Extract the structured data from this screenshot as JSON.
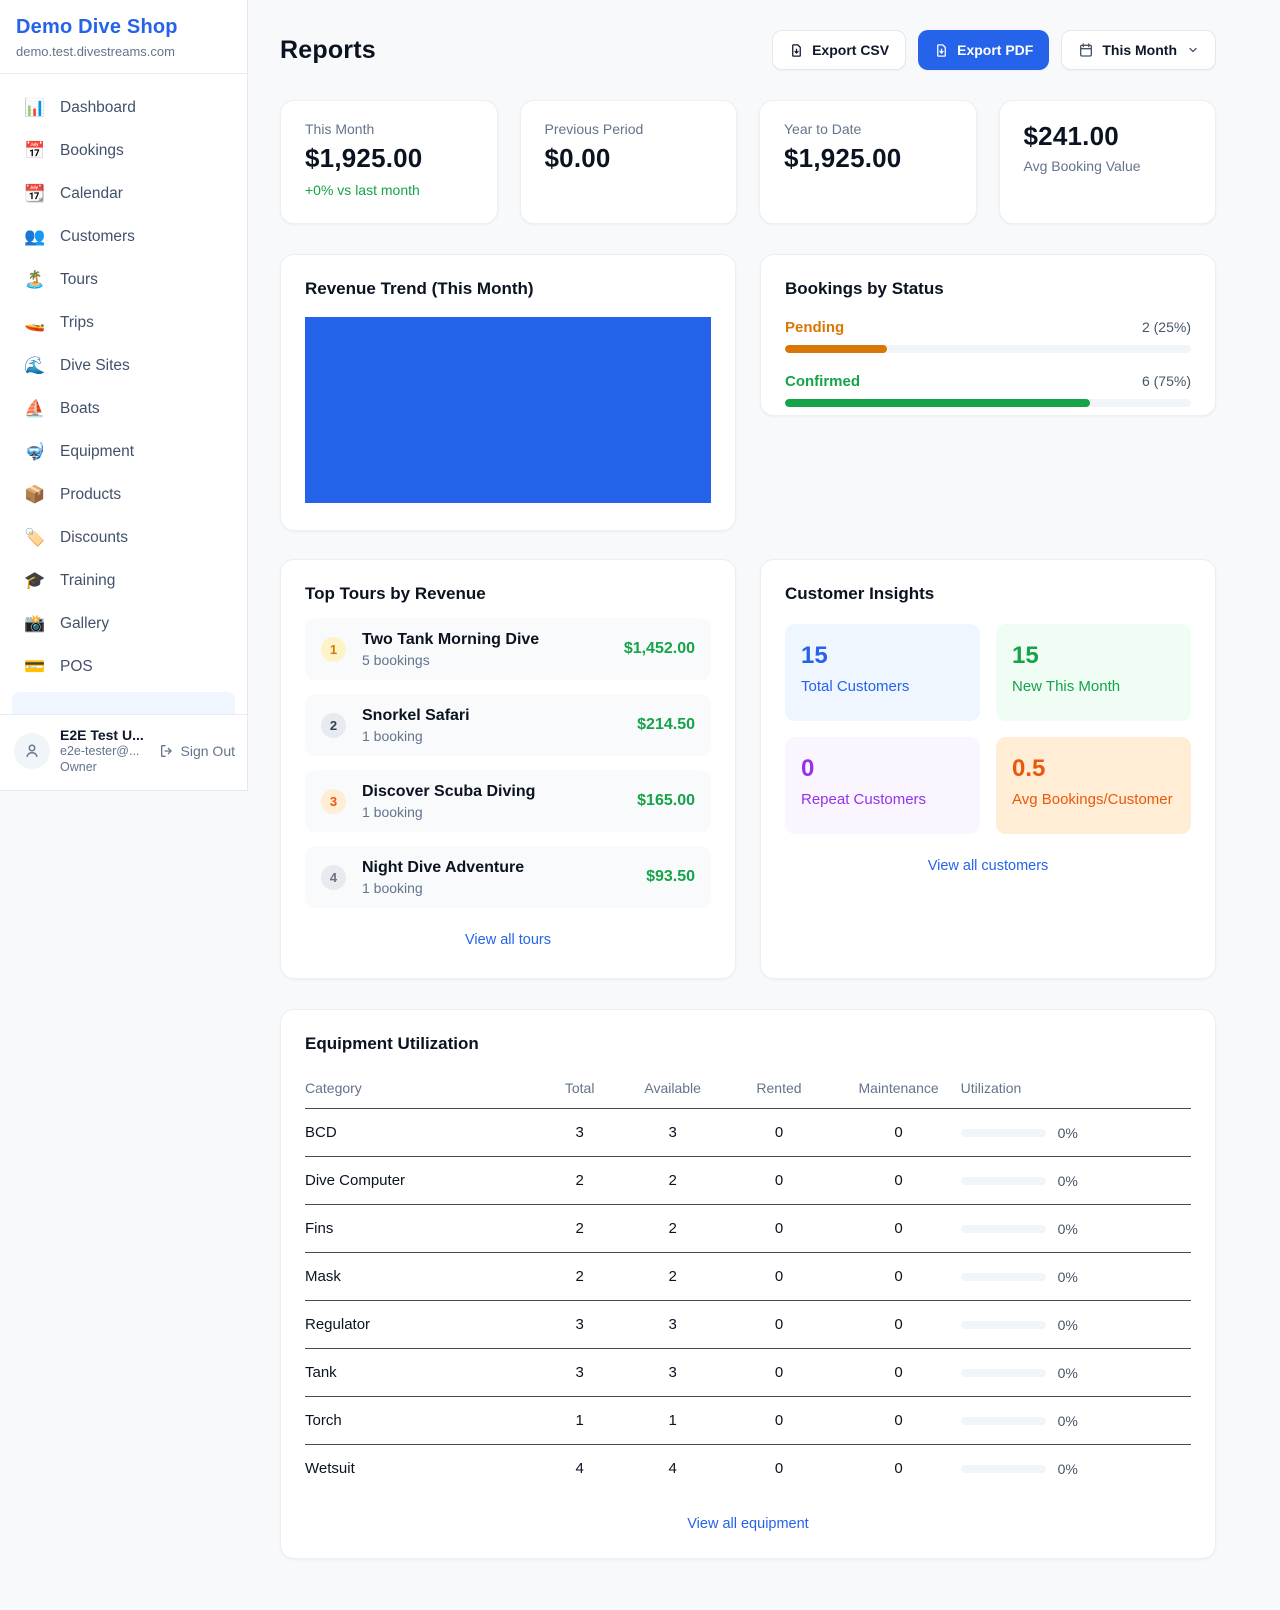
{
  "colors": {
    "accent": "#2563eb",
    "link": "#2563eb",
    "revenue_green": "#16a34a",
    "pending_orange": "#d97706",
    "confirmed_green": "#16a34a",
    "rented_blue": "#2563eb",
    "maintenance_orange": "#ea580c",
    "chart_bar_blue": "#2563eb"
  },
  "brand": {
    "name": "Demo Dive Shop",
    "domain": "demo.test.divestreams.com"
  },
  "sidebar": {
    "items": [
      {
        "label": "Dashboard",
        "icon": "📊"
      },
      {
        "label": "Bookings",
        "icon": "📅"
      },
      {
        "label": "Calendar",
        "icon": "📆"
      },
      {
        "label": "Customers",
        "icon": "👥"
      },
      {
        "label": "Tours",
        "icon": "🏝️"
      },
      {
        "label": "Trips",
        "icon": "🚤"
      },
      {
        "label": "Dive Sites",
        "icon": "🌊"
      },
      {
        "label": "Boats",
        "icon": "⛵"
      },
      {
        "label": "Equipment",
        "icon": "🤿"
      },
      {
        "label": "Products",
        "icon": "📦"
      },
      {
        "label": "Discounts",
        "icon": "🏷️"
      },
      {
        "label": "Training",
        "icon": "🎓"
      },
      {
        "label": "Gallery",
        "icon": "📸"
      },
      {
        "label": "POS",
        "icon": "💳"
      }
    ],
    "user": {
      "name": "E2E Test U...",
      "email": "e2e-tester@...",
      "role": "Owner",
      "sign_out": "Sign Out"
    }
  },
  "header": {
    "title": "Reports",
    "export_csv": "Export CSV",
    "export_pdf": "Export PDF",
    "period": "This Month"
  },
  "stats": {
    "cards": [
      {
        "label": "This Month",
        "value": "$1,925.00",
        "delta": "+0% vs last month"
      },
      {
        "label": "Previous Period",
        "value": "$0.00"
      },
      {
        "label": "Year to Date",
        "value": "$1,925.00"
      },
      {
        "label": "Avg Booking Value",
        "value": "$241.00"
      }
    ]
  },
  "revenue_trend": {
    "title": "Revenue Trend (This Month)",
    "bar_color": "#2563eb"
  },
  "bookings_by_status": {
    "title": "Bookings by Status",
    "rows": [
      {
        "label": "Pending",
        "value": "2 (25%)",
        "pct": 25,
        "color": "#d97706"
      },
      {
        "label": "Confirmed",
        "value": "6 (75%)",
        "pct": 75,
        "color": "#16a34a"
      }
    ]
  },
  "chart_data": [
    {
      "type": "bar",
      "title": "Revenue Trend (This Month)",
      "note": "single full-width solid blue bar block, no visible axes or labels",
      "categories": [
        "This Month"
      ],
      "values": [
        1925.0
      ]
    },
    {
      "type": "bar",
      "title": "Bookings by Status",
      "categories": [
        "Pending",
        "Confirmed"
      ],
      "values": [
        25,
        75
      ],
      "counts": [
        2,
        6
      ],
      "value_labels": [
        "2 (25%)",
        "6 (75%)"
      ],
      "xlabel": "",
      "ylabel": "",
      "ylim": [
        0,
        100
      ]
    }
  ],
  "top_tours": {
    "title": "Top Tours by Revenue",
    "rows": [
      {
        "rank": "1",
        "name": "Two Tank Morning Dive",
        "bookings": "5 bookings",
        "revenue": "$1,452.00"
      },
      {
        "rank": "2",
        "name": "Snorkel Safari",
        "bookings": "1 booking",
        "revenue": "$214.50"
      },
      {
        "rank": "3",
        "name": "Discover Scuba Diving",
        "bookings": "1 booking",
        "revenue": "$165.00"
      },
      {
        "rank": "4",
        "name": "Night Dive Adventure",
        "bookings": "1 booking",
        "revenue": "$93.50"
      }
    ],
    "view_all": "View all tours"
  },
  "customer_insights": {
    "title": "Customer Insights",
    "tiles": [
      {
        "value": "15",
        "label": "Total Customers",
        "bg": "#eff6ff",
        "fg": "#2563eb"
      },
      {
        "value": "15",
        "label": "New This Month",
        "bg": "#f0fdf4",
        "fg": "#16a34a"
      },
      {
        "value": "0",
        "label": "Repeat Customers",
        "bg": "#faf5ff",
        "fg": "#9333ea"
      },
      {
        "value": "0.5",
        "label": "Avg Bookings/Customer",
        "bg": "#ffedd5",
        "fg": "#ea580c"
      }
    ],
    "view_all": "View all customers"
  },
  "equipment": {
    "title": "Equipment Utilization",
    "columns": [
      "Category",
      "Total",
      "Available",
      "Rented",
      "Maintenance",
      "Utilization"
    ],
    "rows": [
      {
        "category": "BCD",
        "total": "3",
        "available": "3",
        "rented": "0",
        "maintenance": "0",
        "utilization": "0%"
      },
      {
        "category": "Dive Computer",
        "total": "2",
        "available": "2",
        "rented": "0",
        "maintenance": "0",
        "utilization": "0%"
      },
      {
        "category": "Fins",
        "total": "2",
        "available": "2",
        "rented": "0",
        "maintenance": "0",
        "utilization": "0%"
      },
      {
        "category": "Mask",
        "total": "2",
        "available": "2",
        "rented": "0",
        "maintenance": "0",
        "utilization": "0%"
      },
      {
        "category": "Regulator",
        "total": "3",
        "available": "3",
        "rented": "0",
        "maintenance": "0",
        "utilization": "0%"
      },
      {
        "category": "Tank",
        "total": "3",
        "available": "3",
        "rented": "0",
        "maintenance": "0",
        "utilization": "0%"
      },
      {
        "category": "Torch",
        "total": "1",
        "available": "1",
        "rented": "0",
        "maintenance": "0",
        "utilization": "0%"
      },
      {
        "category": "Wetsuit",
        "total": "4",
        "available": "4",
        "rented": "0",
        "maintenance": "0",
        "utilization": "0%"
      }
    ],
    "view_all": "View all equipment"
  }
}
